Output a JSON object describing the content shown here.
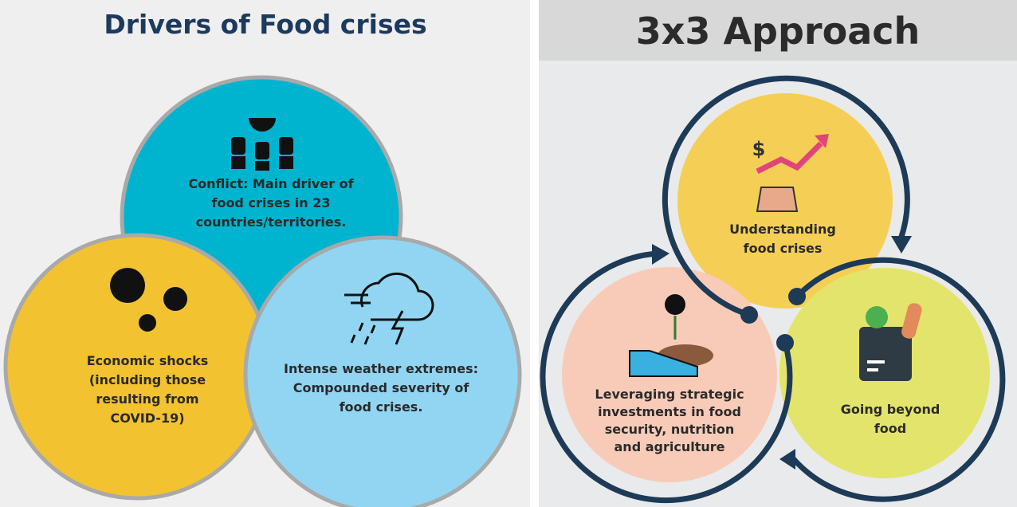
{
  "left": {
    "title": "Drivers of Food crises",
    "items": [
      {
        "lines": [
          "Conflict: Main driver of",
          "food crises in 23",
          "countries/territories."
        ]
      },
      {
        "lines": [
          "Economic shocks",
          "(including those",
          "resulting from",
          "COVID-19)"
        ]
      },
      {
        "lines": [
          "Intense weather extremes:",
          "Compounded severity of",
          "food crises."
        ]
      }
    ]
  },
  "right": {
    "title": "3x3 Approach",
    "items": [
      {
        "lines": [
          "Understanding",
          "food crises"
        ]
      },
      {
        "lines": [
          "Leveraging strategic",
          "investments in food",
          "security, nutrition",
          "and agriculture"
        ]
      },
      {
        "lines": [
          "Going beyond",
          "food"
        ]
      }
    ]
  }
}
